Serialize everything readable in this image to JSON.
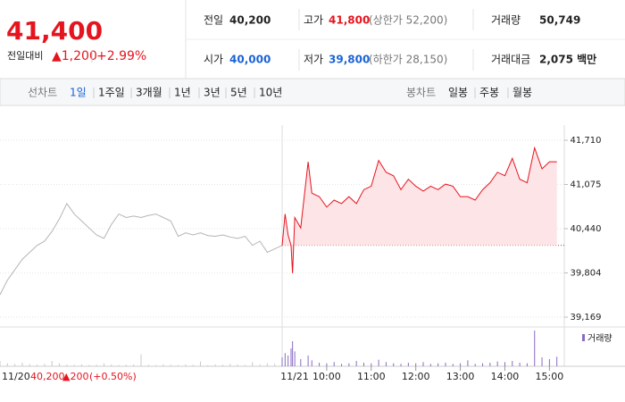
{
  "header": {
    "price": "41,400",
    "change_label": "전일대비",
    "change": "▲1,200",
    "change_pct": "+2.99%"
  },
  "stats": [
    {
      "label": "전일",
      "value": "40,200"
    },
    {
      "label": "고가",
      "value": "41,800",
      "extra": "(상한가 52,200)"
    },
    {
      "label": "거래량",
      "value": "50,749"
    },
    {
      "label": "시가",
      "value": "40,000"
    },
    {
      "label": "저가",
      "value": "39,800",
      "extra": "(하한가 28,150)"
    },
    {
      "label": "거래대금",
      "value": "2,075 백만"
    }
  ],
  "tabs": {
    "line_label": "선차트",
    "line": [
      "1일",
      "1주일",
      "3개월",
      "1년",
      "3년",
      "5년",
      "10년"
    ],
    "candle_label": "봉차트",
    "candle": [
      "일봉",
      "주봉",
      "월봉"
    ]
  },
  "chart": {
    "type": "line",
    "ylim": [
      39169,
      41710
    ],
    "yticks": [
      {
        "value": 41710,
        "label": "41,710"
      },
      {
        "value": 41075,
        "label": "41,075"
      },
      {
        "value": 40440,
        "label": "40,440"
      },
      {
        "value": 39804,
        "label": "39,804"
      },
      {
        "value": 39169,
        "label": "39,169"
      }
    ],
    "xlim": [
      0,
      380
    ],
    "xticks": [
      {
        "value": 60,
        "label": "10:00"
      },
      {
        "value": 120,
        "label": "11:00"
      },
      {
        "value": 180,
        "label": "12:00"
      },
      {
        "value": 240,
        "label": "13:00"
      },
      {
        "value": 300,
        "label": "14:00"
      },
      {
        "value": 360,
        "label": "15:00"
      }
    ],
    "baseline": 40200,
    "volume_label": "거래량",
    "volume_color": "#8a6bc4",
    "vlim": [
      0,
      6000
    ],
    "series": [
      {
        "name": "11/20",
        "color": "#b5b5b5",
        "close": "40,200",
        "close_change": "▲200",
        "close_pct": "(+0.50%)",
        "x": [
          0,
          10,
          20,
          30,
          40,
          50,
          60,
          70,
          80,
          90,
          100,
          110,
          120,
          130,
          140,
          150,
          160,
          170,
          180,
          190,
          200,
          210,
          220,
          230,
          240,
          250,
          260,
          270,
          280,
          290,
          300,
          310,
          320,
          330,
          340,
          350,
          360,
          370,
          380
        ],
        "values": [
          39490,
          39700,
          39850,
          40000,
          40100,
          40200,
          40260,
          40400,
          40580,
          40800,
          40650,
          40550,
          40450,
          40350,
          40300,
          40500,
          40650,
          40600,
          40620,
          40600,
          40630,
          40650,
          40600,
          40550,
          40330,
          40380,
          40350,
          40380,
          40340,
          40330,
          40350,
          40320,
          40300,
          40330,
          40200,
          40260,
          40100,
          40150,
          40200
        ],
        "volume": [
          900,
          500,
          400,
          600,
          350,
          300,
          400,
          900,
          500,
          300,
          250,
          300,
          200,
          250,
          500,
          300,
          200,
          250,
          300,
          2000,
          250,
          200,
          300,
          250,
          200,
          300,
          250,
          800,
          200,
          300,
          250,
          400,
          300,
          200,
          700,
          300,
          500,
          400,
          900
        ]
      },
      {
        "name": "11/21",
        "color": "#e5151f",
        "fill": "#fde4e6",
        "x": [
          0,
          4,
          8,
          12,
          14,
          17,
          25,
          35,
          40,
          50,
          60,
          70,
          80,
          90,
          100,
          110,
          120,
          130,
          140,
          150,
          160,
          170,
          180,
          190,
          200,
          210,
          220,
          230,
          240,
          250,
          260,
          270,
          280,
          290,
          300,
          310,
          320,
          330,
          340,
          350,
          360,
          370
        ],
        "values": [
          40200,
          40650,
          40350,
          40200,
          39800,
          40600,
          40450,
          41400,
          40950,
          40900,
          40750,
          40850,
          40800,
          40900,
          40800,
          41000,
          41050,
          41420,
          41250,
          41200,
          41000,
          41150,
          41050,
          40980,
          41050,
          41000,
          41080,
          41050,
          40900,
          40900,
          40850,
          41000,
          41100,
          41250,
          41200,
          41450,
          41150,
          41100,
          41600,
          41300,
          41400,
          41400
        ],
        "volume": [
          1500,
          2200,
          1800,
          3000,
          4200,
          2500,
          1200,
          1800,
          1000,
          600,
          500,
          700,
          400,
          500,
          900,
          600,
          500,
          1100,
          700,
          500,
          400,
          600,
          500,
          700,
          400,
          500,
          600,
          400,
          500,
          1000,
          400,
          500,
          600,
          800,
          700,
          900,
          600,
          500,
          6000,
          1500,
          1200,
          1600
        ]
      }
    ]
  }
}
